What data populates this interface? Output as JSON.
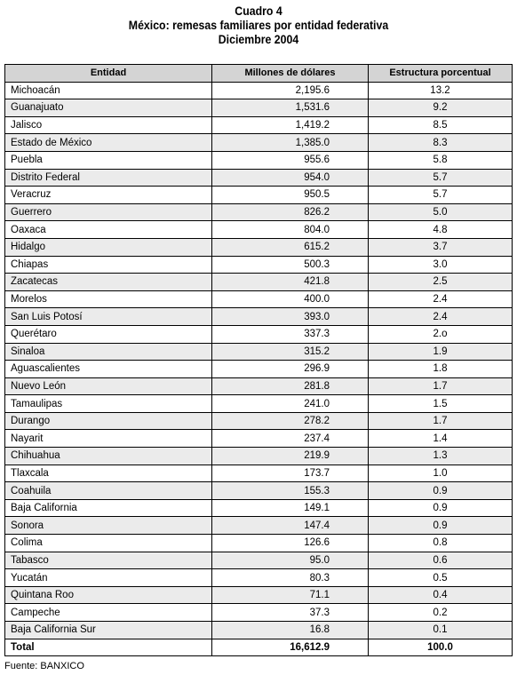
{
  "title": {
    "line1": "Cuadro 4",
    "line2": "México: remesas familiares por entidad federativa",
    "line3": "Diciembre 2004"
  },
  "table": {
    "headers": [
      "Entidad",
      "Millones de dólares",
      "Estructura porcentual"
    ],
    "rows": [
      [
        "Michoacán",
        "2,195.6",
        "13.2"
      ],
      [
        "Guanajuato",
        "1,531.6",
        "9.2"
      ],
      [
        "Jalisco",
        "1,419.2",
        "8.5"
      ],
      [
        "Estado de México",
        "1,385.0",
        "8.3"
      ],
      [
        "Puebla",
        "955.6",
        "5.8"
      ],
      [
        "Distrito Federal",
        "954.0",
        "5.7"
      ],
      [
        "Veracruz",
        "950.5",
        "5.7"
      ],
      [
        "Guerrero",
        "826.2",
        "5.0"
      ],
      [
        "Oaxaca",
        "804.0",
        "4.8"
      ],
      [
        "Hidalgo",
        "615.2",
        "3.7"
      ],
      [
        "Chiapas",
        "500.3",
        "3.0"
      ],
      [
        "Zacatecas",
        "421.8",
        "2.5"
      ],
      [
        "Morelos",
        "400.0",
        "2.4"
      ],
      [
        "San Luis Potosí",
        "393.0",
        "2.4"
      ],
      [
        "Querétaro",
        "337.3",
        "2.o"
      ],
      [
        "Sinaloa",
        "315.2",
        "1.9"
      ],
      [
        "Aguascalientes",
        "296.9",
        "1.8"
      ],
      [
        "Nuevo León",
        "281.8",
        "1.7"
      ],
      [
        "Tamaulipas",
        "241.0",
        "1.5"
      ],
      [
        "Durango",
        "278.2",
        "1.7"
      ],
      [
        "Nayarit",
        "237.4",
        "1.4"
      ],
      [
        "Chihuahua",
        "219.9",
        "1.3"
      ],
      [
        "Tlaxcala",
        "173.7",
        "1.0"
      ],
      [
        "Coahuila",
        "155.3",
        "0.9"
      ],
      [
        "Baja California",
        "149.1",
        "0.9"
      ],
      [
        "Sonora",
        "147.4",
        "0.9"
      ],
      [
        "Colima",
        "126.6",
        "0.8"
      ],
      [
        "Tabasco",
        "95.0",
        "0.6"
      ],
      [
        "Yucatán",
        "80.3",
        "0.5"
      ],
      [
        "Quintana Roo",
        "71.1",
        "0.4"
      ],
      [
        "Campeche",
        "37.3",
        "0.2"
      ],
      [
        "Baja California Sur",
        "16.8",
        "0.1"
      ]
    ],
    "total": [
      "Total",
      "16,612.9",
      "100.0"
    ]
  },
  "source": "Fuente: BANXICO"
}
